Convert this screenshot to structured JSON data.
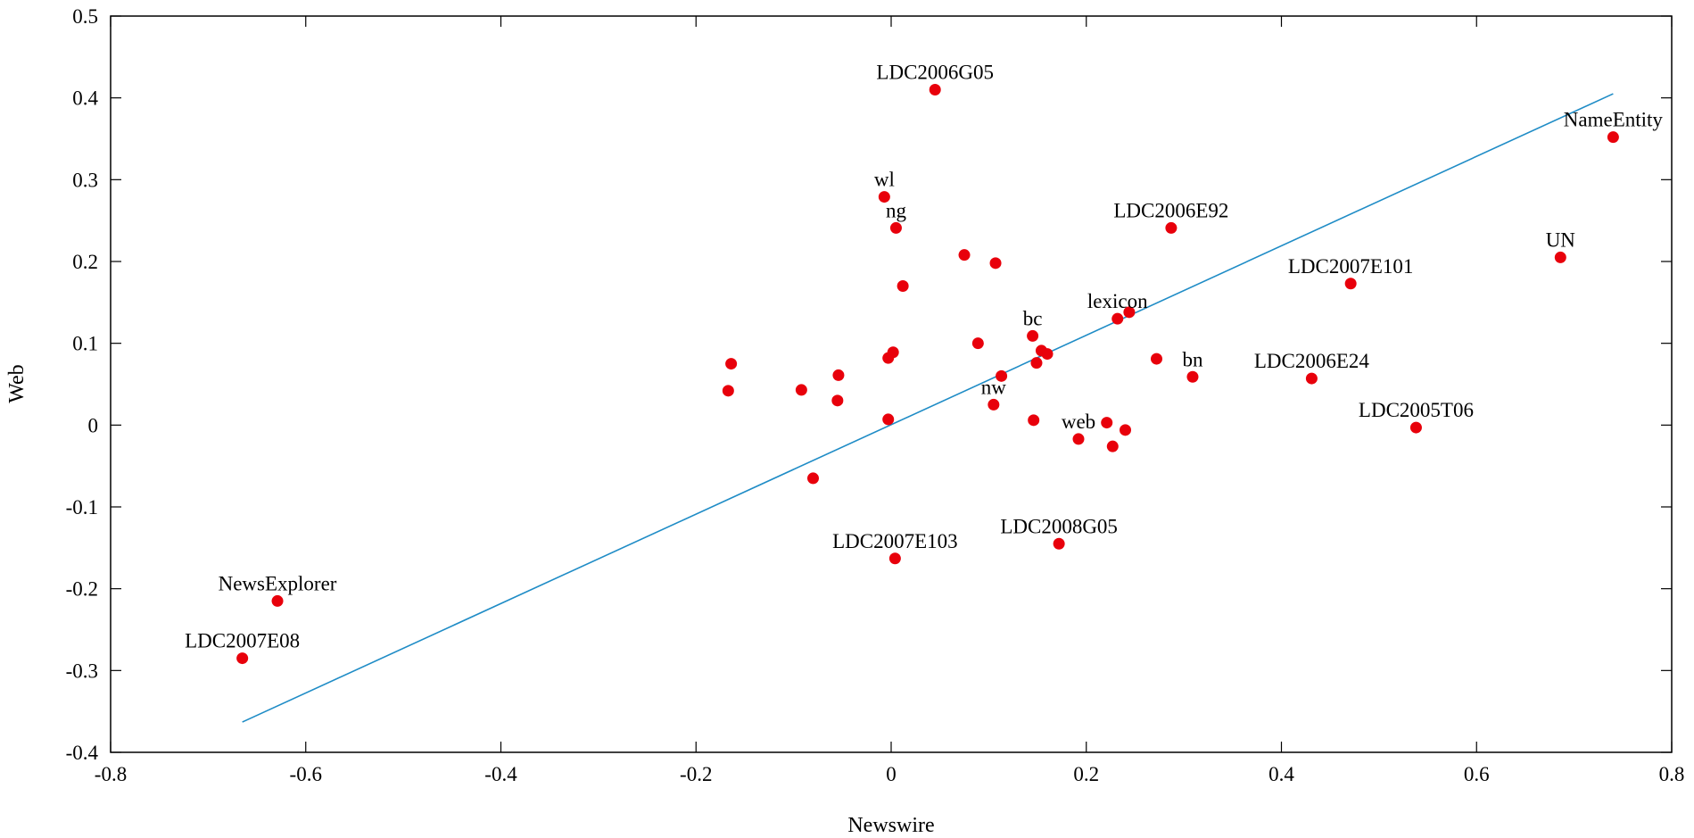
{
  "chart_data": {
    "type": "scatter",
    "title": "",
    "xlabel": "Newswire",
    "ylabel": "Web",
    "xlim": [
      -0.8,
      0.8
    ],
    "ylim": [
      -0.4,
      0.5
    ],
    "grid": false,
    "x_ticks": [
      "-0.8",
      "-0.6",
      "-0.4",
      "-0.2",
      "0",
      "0.2",
      "0.4",
      "0.6",
      "0.8"
    ],
    "y_ticks": [
      "-0.4",
      "-0.3",
      "-0.2",
      "-0.1",
      "0",
      "0.1",
      "0.2",
      "0.3",
      "0.4",
      "0.5"
    ],
    "colors": {
      "points": "#e8000b",
      "fit_line": "#1f8cc6",
      "axes": "#000000"
    },
    "fit_line": {
      "x": [
        -0.665,
        0.74
      ],
      "y": [
        -0.363,
        0.405
      ]
    },
    "points": [
      {
        "x": 0.045,
        "y": 0.41,
        "label": "LDC2006G05"
      },
      {
        "x": 0.74,
        "y": 0.352,
        "label": "NameEntity"
      },
      {
        "x": -0.007,
        "y": 0.279,
        "label": "wl"
      },
      {
        "x": 0.005,
        "y": 0.241,
        "label": "ng"
      },
      {
        "x": 0.287,
        "y": 0.241,
        "label": "LDC2006E92"
      },
      {
        "x": 0.686,
        "y": 0.205,
        "label": "UN"
      },
      {
        "x": 0.471,
        "y": 0.173,
        "label": "LDC2007E101"
      },
      {
        "x": 0.232,
        "y": 0.13,
        "label": "lexicon"
      },
      {
        "x": 0.145,
        "y": 0.109,
        "label": "bc"
      },
      {
        "x": 0.309,
        "y": 0.059,
        "label": "bn"
      },
      {
        "x": 0.431,
        "y": 0.057,
        "label": "LDC2006E24"
      },
      {
        "x": 0.105,
        "y": 0.025,
        "label": "nw"
      },
      {
        "x": 0.538,
        "y": -0.003,
        "label": "LDC2005T06"
      },
      {
        "x": 0.192,
        "y": -0.017,
        "label": "web"
      },
      {
        "x": 0.172,
        "y": -0.145,
        "label": "LDC2008G05"
      },
      {
        "x": 0.004,
        "y": -0.163,
        "label": "LDC2007E103"
      },
      {
        "x": -0.629,
        "y": -0.215,
        "label": "NewsExplorer"
      },
      {
        "x": -0.665,
        "y": -0.285,
        "label": "LDC2007E08"
      },
      {
        "x": 0.075,
        "y": 0.208,
        "label": ""
      },
      {
        "x": 0.107,
        "y": 0.198,
        "label": ""
      },
      {
        "x": 0.012,
        "y": 0.17,
        "label": ""
      },
      {
        "x": 0.244,
        "y": 0.138,
        "label": ""
      },
      {
        "x": 0.089,
        "y": 0.1,
        "label": ""
      },
      {
        "x": 0.154,
        "y": 0.091,
        "label": ""
      },
      {
        "x": 0.002,
        "y": 0.089,
        "label": ""
      },
      {
        "x": 0.16,
        "y": 0.087,
        "label": ""
      },
      {
        "x": -0.003,
        "y": 0.082,
        "label": ""
      },
      {
        "x": 0.272,
        "y": 0.081,
        "label": ""
      },
      {
        "x": 0.149,
        "y": 0.076,
        "label": ""
      },
      {
        "x": -0.164,
        "y": 0.075,
        "label": ""
      },
      {
        "x": -0.054,
        "y": 0.061,
        "label": ""
      },
      {
        "x": 0.113,
        "y": 0.06,
        "label": ""
      },
      {
        "x": -0.092,
        "y": 0.043,
        "label": ""
      },
      {
        "x": -0.167,
        "y": 0.042,
        "label": ""
      },
      {
        "x": -0.055,
        "y": 0.03,
        "label": ""
      },
      {
        "x": -0.003,
        "y": 0.007,
        "label": ""
      },
      {
        "x": 0.146,
        "y": 0.006,
        "label": ""
      },
      {
        "x": 0.221,
        "y": 0.003,
        "label": ""
      },
      {
        "x": 0.24,
        "y": -0.006,
        "label": ""
      },
      {
        "x": 0.227,
        "y": -0.026,
        "label": ""
      },
      {
        "x": -0.08,
        "y": -0.065,
        "label": ""
      }
    ]
  }
}
